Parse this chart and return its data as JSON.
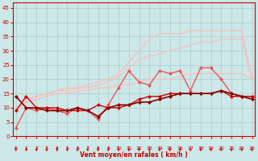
{
  "xlabel": "Vent moyen/en rafales ( km/h )",
  "background_color": "#cce8e8",
  "grid_color": "#aacccc",
  "x_values": [
    0,
    1,
    2,
    3,
    4,
    5,
    6,
    7,
    8,
    9,
    10,
    11,
    12,
    13,
    14,
    15,
    16,
    17,
    18,
    19,
    20,
    21,
    22,
    23
  ],
  "ylim": [
    0,
    47
  ],
  "xlim": [
    -0.3,
    23.3
  ],
  "yticks": [
    0,
    5,
    10,
    15,
    20,
    25,
    30,
    35,
    40,
    45
  ],
  "xticks": [
    0,
    1,
    2,
    3,
    4,
    5,
    6,
    7,
    8,
    9,
    10,
    11,
    12,
    13,
    14,
    15,
    16,
    17,
    18,
    19,
    20,
    21,
    22,
    23
  ],
  "series": [
    {
      "color": "#ffbbbb",
      "linewidth": 0.9,
      "marker": null,
      "y": [
        9,
        12,
        13,
        14,
        15,
        15,
        16,
        16,
        17,
        17,
        18,
        18,
        19,
        20,
        20,
        20,
        21,
        22,
        22,
        22,
        22,
        22,
        22,
        20
      ]
    },
    {
      "color": "#ffbbbb",
      "linewidth": 0.9,
      "marker": null,
      "y": [
        9,
        13,
        14,
        15,
        16,
        16,
        17,
        17,
        18,
        19,
        21,
        24,
        27,
        28,
        29,
        30,
        31,
        32,
        33,
        33,
        34,
        34,
        34,
        20
      ]
    },
    {
      "color": "#ffbbbb",
      "linewidth": 0.9,
      "marker": null,
      "y": [
        9,
        13,
        14,
        15,
        16,
        17,
        17,
        18,
        19,
        20,
        22,
        26,
        30,
        34,
        36,
        36,
        36,
        37,
        37,
        37,
        37,
        37,
        37,
        20
      ]
    },
    {
      "color": "#ee5555",
      "linewidth": 1.0,
      "marker": "D",
      "markersize": 2.2,
      "y": [
        3,
        10,
        9,
        10,
        9,
        8,
        10,
        9,
        6,
        11,
        17,
        23,
        19,
        18,
        23,
        22,
        23,
        16,
        24,
        24,
        20,
        15,
        14,
        14
      ]
    },
    {
      "color": "#cc0000",
      "linewidth": 1.0,
      "marker": "D",
      "markersize": 2.2,
      "y": [
        9,
        14,
        10,
        10,
        10,
        9,
        9,
        9,
        11,
        10,
        10,
        11,
        13,
        14,
        14,
        15,
        15,
        15,
        15,
        15,
        16,
        14,
        14,
        14
      ]
    },
    {
      "color": "#880000",
      "linewidth": 1.2,
      "marker": "D",
      "markersize": 2.2,
      "y": [
        14,
        10,
        10,
        9,
        9,
        9,
        10,
        9,
        7,
        10,
        11,
        11,
        12,
        12,
        13,
        14,
        15,
        15,
        15,
        15,
        16,
        15,
        14,
        13
      ]
    }
  ]
}
